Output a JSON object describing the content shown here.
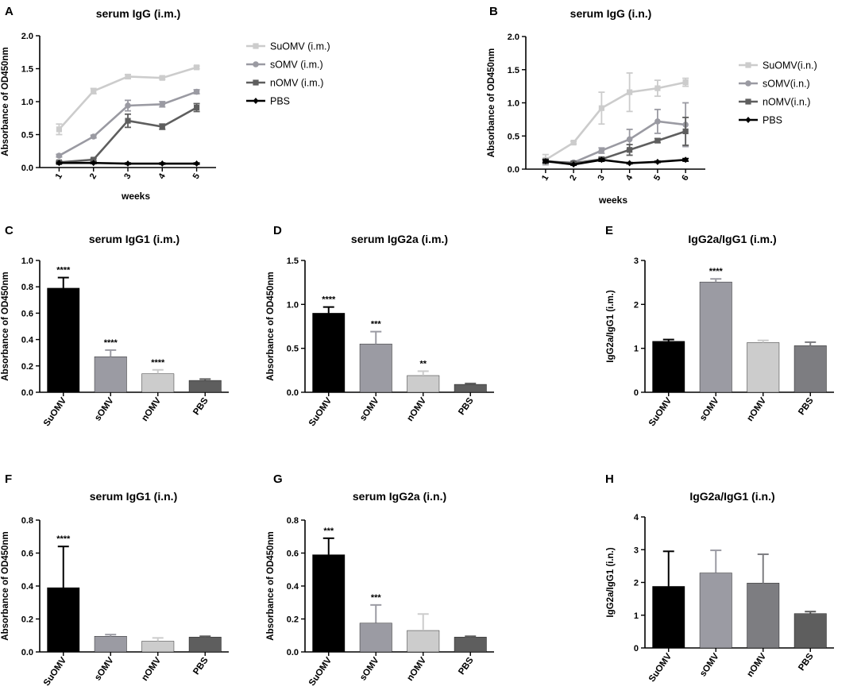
{
  "chart_data": [
    {
      "type": "line",
      "panel": "A",
      "title": "serum IgG (i.m.)",
      "xlabel": "weeks",
      "ylabel": "Absorbance of OD450nm",
      "x": [
        "1",
        "2",
        "3",
        "4",
        "5"
      ],
      "ylim": [
        0,
        2.0
      ],
      "yticks": [
        "0.0",
        "0.5",
        "1.0",
        "1.5",
        "2.0"
      ],
      "series": [
        {
          "name": "SuOMV (i.m.)",
          "color": "#cccccc",
          "marker": "square",
          "values": [
            0.58,
            1.16,
            1.38,
            1.36,
            1.52
          ],
          "errors": [
            0.08,
            0.04,
            0.03,
            0.02,
            0.02
          ]
        },
        {
          "name": "sOMV (i.m.)",
          "color": "#9a9aa2",
          "marker": "circle",
          "values": [
            0.18,
            0.47,
            0.94,
            0.96,
            1.15
          ],
          "errors": [
            0.02,
            0.02,
            0.08,
            0.04,
            0.03
          ]
        },
        {
          "name": "nOMV (i.m.)",
          "color": "#5e5e5e",
          "marker": "square",
          "values": [
            0.08,
            0.12,
            0.71,
            0.62,
            0.91
          ],
          "errors": [
            0.02,
            0.02,
            0.1,
            0.04,
            0.06
          ]
        },
        {
          "name": "PBS",
          "color": "#000000",
          "marker": "diamond",
          "values": [
            0.07,
            0.07,
            0.06,
            0.06,
            0.06
          ],
          "errors": [
            0.01,
            0.01,
            0.01,
            0.01,
            0.01
          ]
        }
      ]
    },
    {
      "type": "line",
      "panel": "B",
      "title": "serum IgG (i.n.)",
      "xlabel": "weeks",
      "ylabel": "Absorbance of OD450nm",
      "x": [
        "1",
        "2",
        "3",
        "4",
        "5",
        "6"
      ],
      "ylim": [
        0,
        2.0
      ],
      "yticks": [
        "0.0",
        "0.5",
        "1.0",
        "1.5",
        "2.0"
      ],
      "series": [
        {
          "name": "SuOMV(i.n.)",
          "color": "#cccccc",
          "marker": "square",
          "values": [
            0.14,
            0.4,
            0.92,
            1.16,
            1.22,
            1.31
          ],
          "errors": [
            0.08,
            0.02,
            0.24,
            0.29,
            0.12,
            0.06
          ]
        },
        {
          "name": "sOMV(i.n.)",
          "color": "#9a9aa2",
          "marker": "circle",
          "values": [
            0.11,
            0.1,
            0.28,
            0.45,
            0.72,
            0.67
          ],
          "errors": [
            0.03,
            0.02,
            0.04,
            0.15,
            0.18,
            0.33
          ]
        },
        {
          "name": "nOMV(i.n.)",
          "color": "#5e5e5e",
          "marker": "square",
          "values": [
            0.12,
            0.09,
            0.15,
            0.29,
            0.43,
            0.57
          ],
          "errors": [
            0.03,
            0.02,
            0.03,
            0.08,
            0.03,
            0.21
          ]
        },
        {
          "name": "PBS",
          "color": "#000000",
          "marker": "diamond",
          "values": [
            0.12,
            0.07,
            0.14,
            0.09,
            0.11,
            0.14
          ],
          "errors": [
            0.02,
            0.01,
            0.02,
            0.01,
            0.01,
            0.02
          ]
        }
      ]
    },
    {
      "type": "bar",
      "panel": "C",
      "title": "serum IgG1 (i.m.)",
      "xlabel": "",
      "ylabel": "Absorbance of OD450nm",
      "categories": [
        "SuOMV",
        "sOMV",
        "nOMV",
        "PBS"
      ],
      "ylim": [
        0,
        1.0
      ],
      "yticks": [
        "0.0",
        "0.2",
        "0.4",
        "0.6",
        "0.8",
        "1.0"
      ],
      "values": [
        0.79,
        0.27,
        0.14,
        0.09
      ],
      "errors": [
        0.08,
        0.05,
        0.03,
        0.01
      ],
      "annotations": [
        "****",
        "****",
        "****",
        ""
      ],
      "colors": [
        "#000000",
        "#9b9ba3",
        "#cccccc",
        "#5e5e5e"
      ]
    },
    {
      "type": "bar",
      "panel": "D",
      "title": "serum IgG2a (i.m.)",
      "xlabel": "",
      "ylabel": "Absorbance of OD450nm",
      "categories": [
        "SuOMV",
        "sOMV",
        "nOMV",
        "PBS"
      ],
      "ylim": [
        0,
        1.5
      ],
      "yticks": [
        "0.0",
        "0.5",
        "1.0",
        "1.5"
      ],
      "values": [
        0.9,
        0.55,
        0.19,
        0.09
      ],
      "errors": [
        0.07,
        0.14,
        0.05,
        0.01
      ],
      "annotations": [
        "****",
        "***",
        "**",
        ""
      ],
      "colors": [
        "#000000",
        "#9b9ba3",
        "#cccccc",
        "#5e5e5e"
      ]
    },
    {
      "type": "bar",
      "panel": "E",
      "title": "IgG2a/IgG1 (i.m.)",
      "xlabel": "",
      "ylabel": "IgG2a/IgG1 (i.m.)",
      "categories": [
        "SuOMV",
        "sOMV",
        "nOMV",
        "PBS"
      ],
      "ylim": [
        0,
        3
      ],
      "yticks": [
        "0",
        "1",
        "2",
        "3"
      ],
      "values": [
        1.16,
        2.51,
        1.13,
        1.06
      ],
      "errors": [
        0.04,
        0.07,
        0.05,
        0.08
      ],
      "annotations": [
        "",
        "****",
        "",
        ""
      ],
      "colors": [
        "#000000",
        "#9b9ba3",
        "#cccccc",
        "#7d7d81"
      ]
    },
    {
      "type": "bar",
      "panel": "F",
      "title": "serum IgG1 (i.n.)",
      "xlabel": "",
      "ylabel": "Absorbance of OD450nm",
      "categories": [
        "SuOMV",
        "sOMV",
        "nOMV",
        "PBS"
      ],
      "ylim": [
        0,
        0.8
      ],
      "yticks": [
        "0.0",
        "0.2",
        "0.4",
        "0.6",
        "0.8"
      ],
      "values": [
        0.39,
        0.095,
        0.065,
        0.09
      ],
      "errors": [
        0.25,
        0.01,
        0.02,
        0.005
      ],
      "annotations": [
        "****",
        "",
        "",
        ""
      ],
      "colors": [
        "#000000",
        "#9b9ba3",
        "#cccccc",
        "#5e5e5e"
      ]
    },
    {
      "type": "bar",
      "panel": "G",
      "title": "serum IgG2a (i.n.)",
      "xlabel": "",
      "ylabel": "Absorbance of OD450nm",
      "categories": [
        "SuOMV",
        "sOMV",
        "nOMV",
        "PBS"
      ],
      "ylim": [
        0,
        0.8
      ],
      "yticks": [
        "0.0",
        "0.2",
        "0.4",
        "0.6",
        "0.8"
      ],
      "values": [
        0.59,
        0.175,
        0.13,
        0.09
      ],
      "errors": [
        0.1,
        0.11,
        0.1,
        0.005
      ],
      "annotations": [
        "***",
        "***",
        "",
        ""
      ],
      "colors": [
        "#000000",
        "#9b9ba3",
        "#cccccc",
        "#5e5e5e"
      ]
    },
    {
      "type": "bar",
      "panel": "H",
      "title": "IgG2a/IgG1 (i.n.)",
      "xlabel": "",
      "ylabel": "IgG2a/IgG1 (i.n.)",
      "categories": [
        "SuOMV",
        "sOMV",
        "nOMV",
        "PBS"
      ],
      "ylim": [
        0,
        4
      ],
      "yticks": [
        "0",
        "1",
        "2",
        "3",
        "4"
      ],
      "values": [
        1.88,
        2.29,
        1.98,
        1.05
      ],
      "errors": [
        1.07,
        0.69,
        0.88,
        0.06
      ],
      "annotations": [
        "",
        "",
        "",
        ""
      ],
      "colors": [
        "#000000",
        "#9b9ba3",
        "#7d7d81",
        "#5e5e5e"
      ]
    }
  ]
}
